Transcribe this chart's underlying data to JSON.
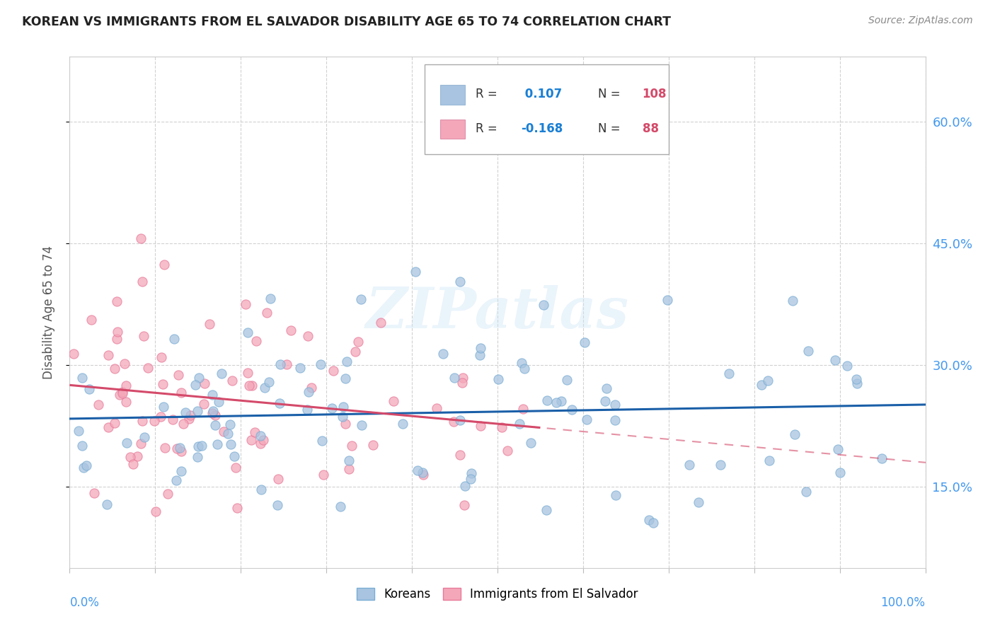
{
  "title": "KOREAN VS IMMIGRANTS FROM EL SALVADOR DISABILITY AGE 65 TO 74 CORRELATION CHART",
  "source": "Source: ZipAtlas.com",
  "ylabel": "Disability Age 65 to 74",
  "ytick_vals": [
    0.15,
    0.3,
    0.45,
    0.6
  ],
  "ytick_labels": [
    "15.0%",
    "30.0%",
    "45.0%",
    "60.0%"
  ],
  "xlim": [
    0.0,
    1.0
  ],
  "ylim": [
    0.05,
    0.68
  ],
  "korean_color": "#a8c4e0",
  "korean_edge_color": "#7aadd4",
  "salvador_color": "#f4a7b9",
  "salvador_edge_color": "#e87a9a",
  "korean_line_color": "#1a5fa8",
  "salvador_line_color": "#d44a6a",
  "korean_R": 0.107,
  "korean_N": 108,
  "salvador_R": -0.168,
  "salvador_N": 88,
  "watermark": "ZIPatlas",
  "background_color": "#ffffff",
  "grid_color": "#cccccc",
  "legend_R_color": "#1a7fd4",
  "legend_N_color": "#d44a6a",
  "tick_label_color": "#4499ee",
  "title_color": "#222222",
  "source_color": "#888888",
  "ylabel_color": "#555555"
}
